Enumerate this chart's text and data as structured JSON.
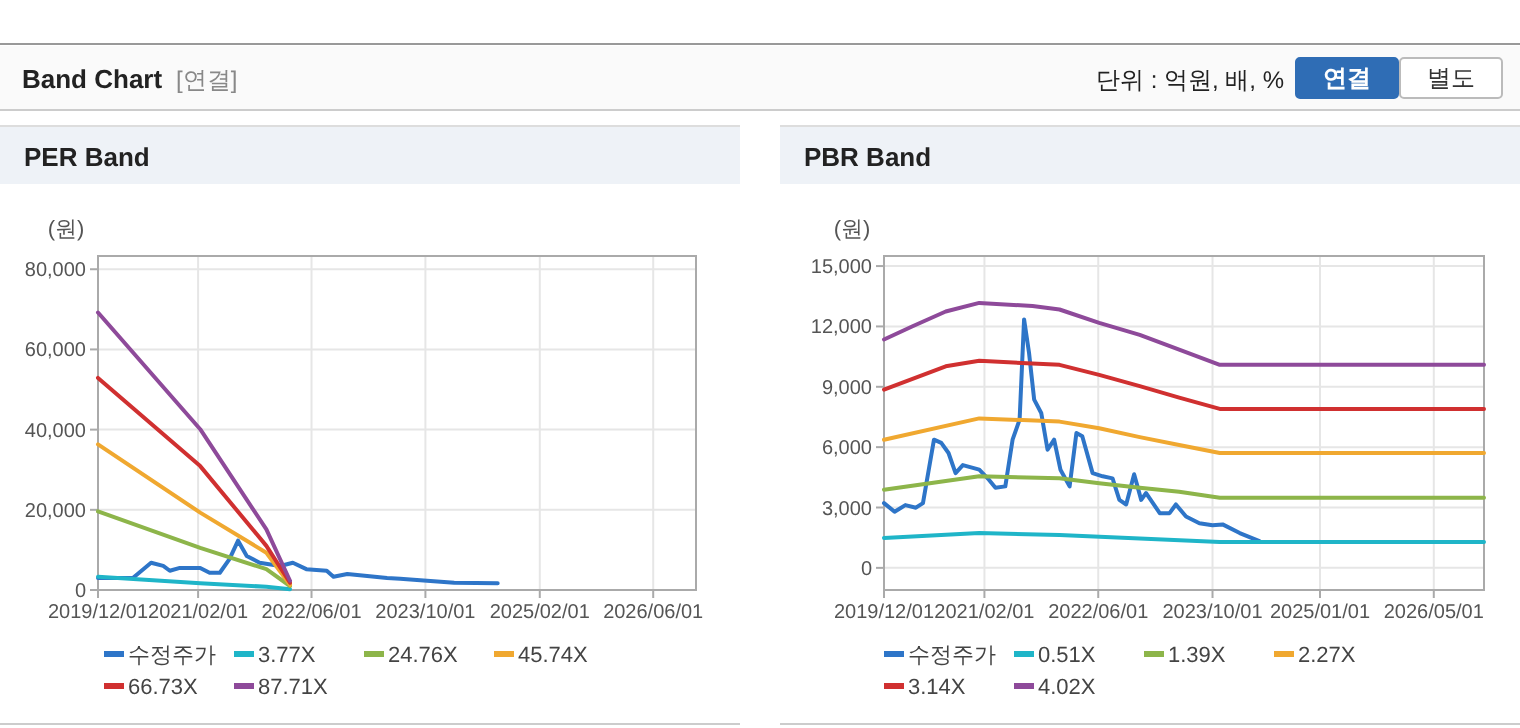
{
  "chart_data": [
    {
      "type": "other",
      "title": "Band Chart",
      "annotations": [
        "[연결]",
        "단위 : 억원, 배, %",
        "연결",
        "별도"
      ]
    },
    {
      "type": "line",
      "title": "PER Band",
      "ylabel": "(원)",
      "grid": true,
      "legend": "bottom",
      "xlim": [
        "2019-12-01",
        "2026-12-01"
      ],
      "ylim": [
        0,
        83300
      ],
      "xticks": [
        {
          "value": "2019-12-01",
          "label": "2019/12/01"
        },
        {
          "value": "2021-02-01",
          "label": "2021/02/01"
        },
        {
          "value": "2022-06-01",
          "label": "2022/06/01"
        },
        {
          "value": "2023-10-01",
          "label": "2023/10/01"
        },
        {
          "value": "2025-02-01",
          "label": "2025/02/01"
        },
        {
          "value": "2026-06-01",
          "label": "2026/06/01"
        }
      ],
      "yticks": [
        0,
        {
          "value": 20000,
          "label": "20,000"
        },
        {
          "value": 40000,
          "label": "40,000"
        },
        {
          "value": 60000,
          "label": "60,000"
        },
        {
          "value": 80000,
          "label": "80,000"
        }
      ],
      "series": [
        {
          "name": "수정주가",
          "color": "#2e75c8",
          "x": [
            "2019-12-01",
            "2020-04-28",
            "2020-07-15",
            "2020-09-05",
            "2020-10-03",
            "2020-11-15",
            "2021-02-10",
            "2021-03-22",
            "2021-05-05",
            "2021-06-15",
            "2021-07-22",
            "2021-08-28",
            "2021-10-22",
            "2022-01-18",
            "2022-03-13",
            "2022-05-10",
            "2022-08-05",
            "2022-09-03",
            "2022-11-01",
            "2023-01-25",
            "2023-04-20",
            "2023-06-15",
            "2023-10-08",
            "2024-02-01",
            "2024-08-05"
          ],
          "values": [
            3000,
            3000,
            6800,
            6000,
            4800,
            5500,
            5500,
            4300,
            4300,
            7700,
            12300,
            8500,
            6800,
            6000,
            6800,
            5200,
            4800,
            3300,
            4000,
            3500,
            3000,
            2800,
            2300,
            1800,
            1700
          ]
        },
        {
          "name": "3.77X",
          "color": "#1fb5c8",
          "x": [
            "2019-12-01",
            "2021-02-10",
            "2021-11-20",
            "2022-03-01"
          ],
          "values": [
            3300,
            1700,
            800,
            200
          ]
        },
        {
          "name": "24.76X",
          "color": "#8db54a",
          "x": [
            "2019-12-01",
            "2021-02-10",
            "2021-11-20",
            "2022-03-01"
          ],
          "values": [
            19600,
            10500,
            5200,
            1000
          ]
        },
        {
          "name": "45.74X",
          "color": "#f0a830",
          "x": [
            "2019-12-01",
            "2021-02-10",
            "2021-11-20",
            "2022-03-01"
          ],
          "values": [
            36300,
            19300,
            9300,
            1300
          ]
        },
        {
          "name": "66.73X",
          "color": "#d03030",
          "x": [
            "2019-12-01",
            "2021-02-10",
            "2021-11-20",
            "2022-03-01"
          ],
          "values": [
            52900,
            30900,
            11000,
            1800
          ]
        },
        {
          "name": "87.71X",
          "color": "#8e4a9a",
          "x": [
            "2019-12-01",
            "2021-02-10",
            "2021-11-20",
            "2022-03-01"
          ],
          "values": [
            69200,
            40100,
            15100,
            2300
          ]
        }
      ]
    },
    {
      "type": "line",
      "title": "PBR Band",
      "ylabel": "(원)",
      "grid": true,
      "legend": "bottom",
      "xlim": [
        "2019-12-01",
        "2026-12-01"
      ],
      "ylim": [
        -1100,
        15500
      ],
      "xticks": [
        {
          "value": "2019-12-01",
          "label": "2019/12/01"
        },
        {
          "value": "2021-02-01",
          "label": "2021/02/01"
        },
        {
          "value": "2022-06-01",
          "label": "2022/06/01"
        },
        {
          "value": "2023-10-01",
          "label": "2023/10/01"
        },
        {
          "value": "2025-01-01",
          "label": "2025/01/01"
        },
        {
          "value": "2026-05-01",
          "label": "2026/05/01"
        }
      ],
      "yticks": [
        0,
        {
          "value": 3000,
          "label": "3,000"
        },
        {
          "value": 6000,
          "label": "6,000"
        },
        {
          "value": 9000,
          "label": "9,000"
        },
        {
          "value": 12000,
          "label": "12,000"
        },
        {
          "value": 15000,
          "label": "15,000"
        }
      ],
      "series": [
        {
          "name": "수정주가",
          "color": "#2e75c8",
          "x": [
            "2019-12-01",
            "2020-01-15",
            "2020-03-01",
            "2020-04-15",
            "2020-05-15",
            "2020-07-01",
            "2020-08-01",
            "2020-09-01",
            "2020-10-01",
            "2020-11-01",
            "2021-01-10",
            "2021-02-20",
            "2021-03-20",
            "2021-05-01",
            "2021-06-01",
            "2021-07-01",
            "2021-07-20",
            "2021-08-10",
            "2021-09-01",
            "2021-10-01",
            "2021-10-28",
            "2021-11-25",
            "2021-12-22",
            "2022-01-30",
            "2022-02-28",
            "2022-03-25",
            "2022-05-08",
            "2022-06-20",
            "2022-08-01",
            "2022-08-30",
            "2022-09-28",
            "2022-11-01",
            "2022-12-01",
            "2022-12-22",
            "2023-02-18",
            "2023-04-01",
            "2023-04-28",
            "2023-06-10",
            "2023-08-06",
            "2023-10-01",
            "2023-11-13",
            "2024-01-25",
            "2024-04-18"
          ],
          "values": [
            3220,
            2790,
            3120,
            2990,
            3220,
            6370,
            6210,
            5710,
            4710,
            5110,
            4880,
            4380,
            3980,
            4050,
            6370,
            7370,
            12350,
            10690,
            8360,
            7700,
            5870,
            6370,
            4880,
            4050,
            6700,
            6540,
            4710,
            4550,
            4450,
            3380,
            3150,
            4650,
            3380,
            3720,
            2720,
            2720,
            3150,
            2550,
            2220,
            2120,
            2160,
            1730,
            1330
          ]
        },
        {
          "name": "0.51X",
          "color": "#1fb5c8",
          "x": [
            "2019-12-01",
            "2021-01-10",
            "2021-12-18",
            "2022-11-25",
            "2023-11-01",
            "2026-12-01"
          ],
          "values": [
            1490,
            1730,
            1630,
            1460,
            1290,
            1290
          ]
        },
        {
          "name": "1.39X",
          "color": "#8db54a",
          "x": [
            "2019-12-01",
            "2021-01-10",
            "2021-12-18",
            "2022-06-05",
            "2022-11-25",
            "2023-05-12",
            "2023-11-01",
            "2026-12-01"
          ],
          "values": [
            3880,
            4550,
            4450,
            4210,
            3980,
            3780,
            3480,
            3480
          ]
        },
        {
          "name": "2.27X",
          "color": "#f0a830",
          "x": [
            "2019-12-01",
            "2021-01-10",
            "2021-12-18",
            "2022-06-05",
            "2022-11-25",
            "2023-05-12",
            "2023-11-01",
            "2026-12-01"
          ],
          "values": [
            6370,
            7430,
            7270,
            6940,
            6500,
            6110,
            5710,
            5710
          ]
        },
        {
          "name": "3.14X",
          "color": "#d03030",
          "x": [
            "2019-12-01",
            "2020-08-20",
            "2021-01-10",
            "2021-12-18",
            "2022-06-05",
            "2022-11-25",
            "2023-05-12",
            "2023-11-01",
            "2026-12-01"
          ],
          "values": [
            8860,
            10020,
            10290,
            10090,
            9590,
            9030,
            8460,
            7900,
            7900
          ]
        },
        {
          "name": "4.02X",
          "color": "#8e4a9a",
          "x": [
            "2019-12-01",
            "2020-04-01",
            "2020-08-20",
            "2021-01-10",
            "2021-08-25",
            "2021-12-18",
            "2022-06-05",
            "2022-11-25",
            "2023-05-12",
            "2023-11-01",
            "2026-12-01"
          ],
          "values": [
            11350,
            12010,
            12740,
            13170,
            13010,
            12840,
            12180,
            11580,
            10850,
            10090,
            10090
          ]
        }
      ]
    }
  ]
}
